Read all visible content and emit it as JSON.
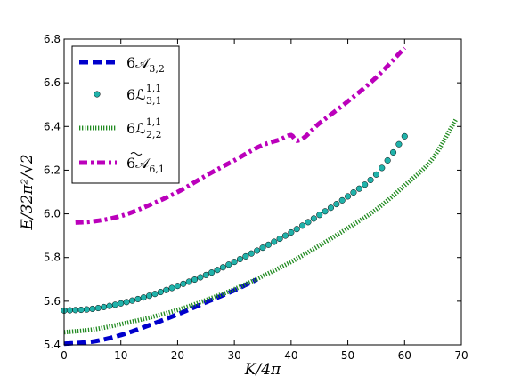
{
  "chart_data": {
    "type": "line",
    "title": "",
    "xlabel": "K/4π",
    "ylabel": "E/32π²/√2",
    "xlim": [
      0,
      70
    ],
    "ylim": [
      5.4,
      6.8
    ],
    "xticks": [
      "0",
      "10",
      "20",
      "30",
      "40",
      "50",
      "60",
      "70"
    ],
    "yticks": [
      "5.4",
      "5.6",
      "5.8",
      "6.0",
      "6.2",
      "6.4",
      "6.6",
      "6.8"
    ],
    "grid": false,
    "legend_position": "top-left",
    "series": [
      {
        "name": "6𝒜3,2",
        "legend_main": "6𝒜",
        "legend_sub": "3,2",
        "legend_sup": "",
        "style": "dashed",
        "color": "#0000cc",
        "x": [
          0,
          5,
          10,
          15,
          20,
          25,
          30,
          34
        ],
        "y": [
          5.405,
          5.415,
          5.445,
          5.49,
          5.54,
          5.595,
          5.65,
          5.7
        ]
      },
      {
        "name": "6ℒ1,1 3,1",
        "legend_main": "6ℒ",
        "legend_sub": "3,1",
        "legend_sup": "1,1",
        "style": "circles",
        "color": "#20b2aa",
        "x": [
          0,
          5,
          10,
          15,
          20,
          25,
          30,
          35,
          40,
          45,
          50,
          55,
          60
        ],
        "y": [
          5.557,
          5.565,
          5.59,
          5.625,
          5.67,
          5.72,
          5.78,
          5.845,
          5.915,
          5.995,
          6.08,
          6.18,
          6.355
        ]
      },
      {
        "name": "6ℒ1,1 2,2",
        "legend_main": "6ℒ",
        "legend_sub": "2,2",
        "legend_sup": "1,1",
        "style": "dotted",
        "color": "#228b22",
        "x": [
          0,
          5,
          10,
          15,
          20,
          25,
          30,
          35,
          40,
          45,
          50,
          55,
          60,
          65,
          69
        ],
        "y": [
          5.458,
          5.47,
          5.495,
          5.525,
          5.56,
          5.605,
          5.655,
          5.715,
          5.78,
          5.855,
          5.935,
          6.02,
          6.13,
          6.255,
          6.43
        ]
      },
      {
        "name": "6𝒜̃6,1",
        "legend_main": "6𝒜",
        "legend_sub": "6,1",
        "legend_sup": "",
        "style": "dash-dot",
        "color": "#bb00bb",
        "x": [
          2,
          5,
          10,
          15,
          20,
          25,
          30,
          35,
          38,
          40,
          41,
          45,
          50,
          55,
          60
        ],
        "y": [
          5.96,
          5.965,
          5.99,
          6.04,
          6.1,
          6.175,
          6.245,
          6.315,
          6.34,
          6.36,
          6.335,
          6.415,
          6.515,
          6.625,
          6.76
        ]
      }
    ]
  }
}
